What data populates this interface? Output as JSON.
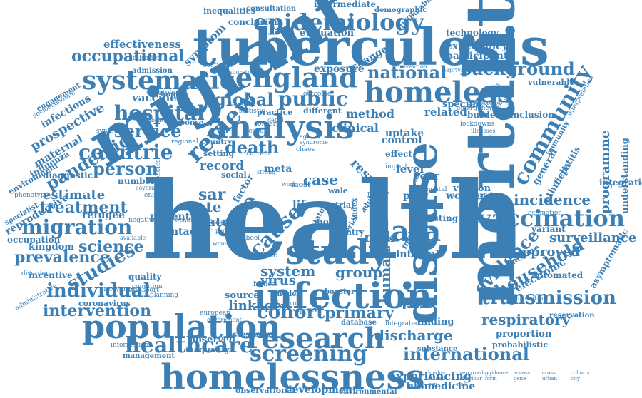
{
  "color": "#3b7fb5",
  "words": [
    "health",
    "migrant",
    "mortality",
    "tuberculosis",
    "disease",
    "homelessness",
    "infection",
    "population",
    "study",
    "analysis",
    "homeless",
    "england",
    "research",
    "epidemiology",
    "systematic",
    "vaccination",
    "data",
    "review",
    "cohort",
    "community",
    "screening",
    "international",
    "transmission",
    "healthcare",
    "migration",
    "hospital",
    "countrie",
    "public",
    "global",
    "individual",
    "service",
    "person",
    "occupational",
    "background",
    "national",
    "death",
    "pandemic",
    "evidence",
    "household",
    "treatment",
    "prevalence",
    "science",
    "studies",
    "intervention",
    "primary",
    "discharge",
    "respiratory",
    "surveillance",
    "incidence",
    "approved",
    "programme",
    "experiencing",
    "biomedicine",
    "development",
    "observational",
    "environmental",
    "inequality",
    "management",
    "observed",
    "substance",
    "finding",
    "proportion",
    "reservation",
    "technology",
    "expectancy",
    "participant",
    "intermediate",
    "evaluation",
    "conclusion",
    "inequalities",
    "consultation",
    "demographic",
    "attributable",
    "effectiveness",
    "symptom",
    "utilisation",
    "admission",
    "vaccine",
    "exposure",
    "prospective",
    "infectious",
    "engagement",
    "socioeconomic",
    "maternal",
    "influenza",
    "environment",
    "diagnostic",
    "reproductive",
    "specialist",
    "occupation",
    "kingdom",
    "incentive",
    "administrative",
    "coronavirus",
    "internal",
    "support",
    "database",
    "integrated",
    "estimate",
    "refugee",
    "patient",
    "contact",
    "watch",
    "sar",
    "care",
    "case",
    "risk",
    "virus",
    "group",
    "system",
    "linkage",
    "quality",
    "condition",
    "planning",
    "transport",
    "assessment",
    "information",
    "government",
    "european",
    "highest",
    "source",
    "booster",
    "model",
    "human",
    "interval",
    "testing",
    "worker",
    "peer",
    "version",
    "result",
    "year",
    "level",
    "control",
    "uptake",
    "clinical",
    "method",
    "related",
    "specific",
    "burden",
    "inclusion",
    "vulnerable",
    "interpretation",
    "seasonal",
    "adherence",
    "challenge",
    "definition",
    "lockdowns",
    "illnesses",
    "deprivation",
    "prevention",
    "emergency",
    "electronic",
    "income",
    "variant",
    "general",
    "ethnicity",
    "hepatitis",
    "immunity",
    "integration",
    "understanding",
    "asymptomatic",
    "estimation",
    "premature",
    "probabilistic",
    "automated",
    "approach",
    "rate",
    "factor",
    "cause",
    "record",
    "meta",
    "setting",
    "current",
    "social",
    "country",
    "regional",
    "response",
    "smartphone",
    "london",
    "london",
    "statistic",
    "practice",
    "different",
    "outcome",
    "change",
    "more",
    "most",
    "life",
    "trial",
    "entry",
    "index",
    "mobile",
    "effect",
    "impact",
    "serial",
    "cough",
    "adult",
    "reduce",
    "mental",
    "school",
    "ethnic",
    "status",
    "number",
    "syndrome",
    "age",
    "based",
    "annoyance",
    "negative",
    "available",
    "weather",
    "dataset",
    "concern",
    "measure",
    "wale",
    "detail",
    "strong",
    "work",
    "chaos",
    "essential",
    "protection",
    "overcrowding",
    "sectional",
    "laboratory",
    "wellbeing",
    "synthesis",
    "disorder",
    "phenotype",
    "coverage",
    "policies",
    "english",
    "delivery",
    "survey",
    "guidance",
    "access",
    "woman",
    "cross",
    "period",
    "cohorts",
    "student",
    "behaviour",
    "form",
    "gene",
    "urban",
    "city",
    "gap",
    "rise"
  ]
}
